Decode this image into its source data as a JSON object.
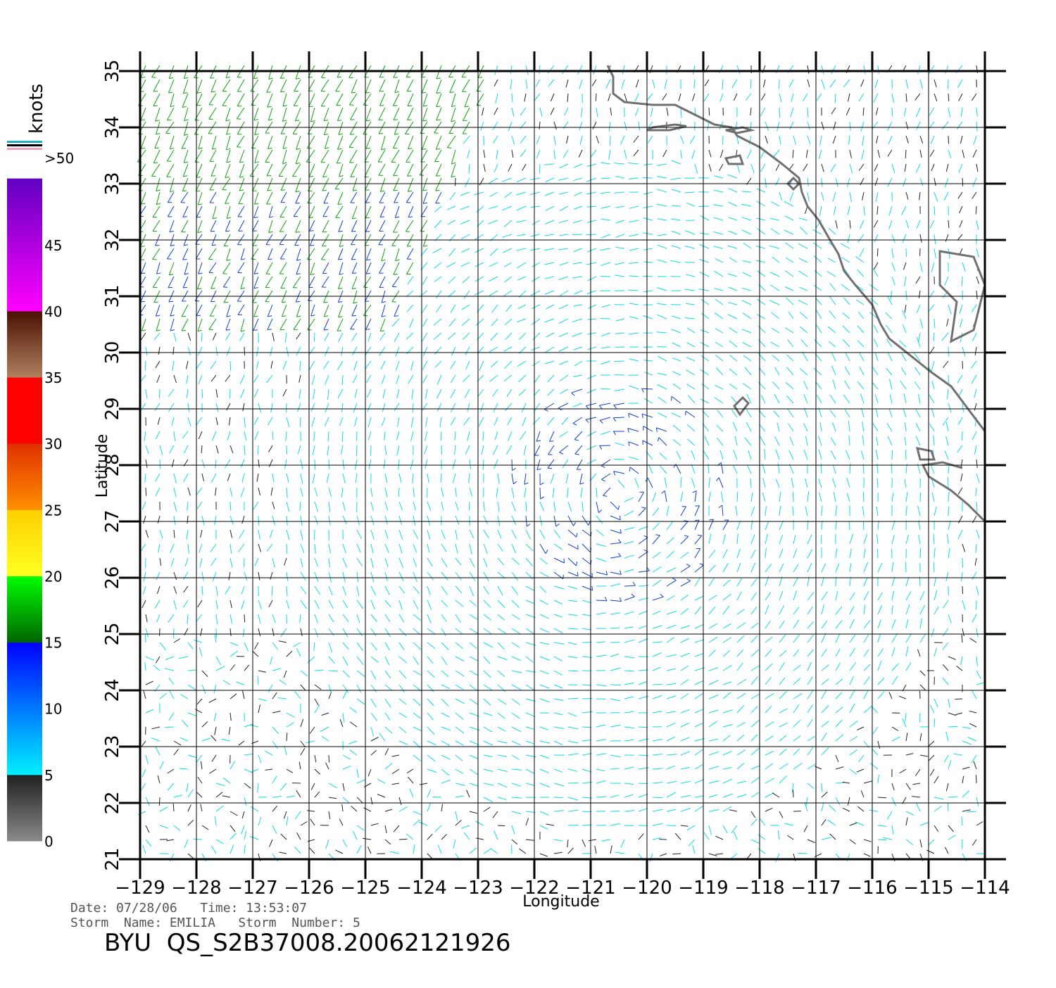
{
  "colorbar": {
    "unit_label": "knots",
    "tick_labels": [
      ">50",
      "45",
      "40",
      "35",
      "30",
      "25",
      "20",
      "15",
      "10",
      "5",
      "0"
    ],
    "bands": [
      {
        "from": 0,
        "to": 5,
        "top": "#202020",
        "bottom": "#8a8a8a"
      },
      {
        "from": 5,
        "to": 15,
        "top": "#0000ff",
        "bottom": "#00f0ff"
      },
      {
        "from": 15,
        "to": 20,
        "top": "#00ff00",
        "bottom": "#006400"
      },
      {
        "from": 20,
        "to": 25,
        "top": "#ffd000",
        "bottom": "#ffff20"
      },
      {
        "from": 25,
        "to": 30,
        "top": "#e03000",
        "bottom": "#ff9000"
      },
      {
        "from": 30,
        "to": 35,
        "top": "#ff0000",
        "bottom": "#ff0000"
      },
      {
        "from": 35,
        "to": 40,
        "top": "#4a1000",
        "bottom": "#b08060"
      },
      {
        "from": 40,
        "to": 50,
        "top": "#6000c0",
        "bottom": "#ff00ff"
      }
    ]
  },
  "map": {
    "lon_range": [
      -129,
      -114
    ],
    "lat_range": [
      21,
      35
    ],
    "lon_ticks": [
      -129,
      -128,
      -127,
      -126,
      -125,
      -124,
      -123,
      -122,
      -121,
      -120,
      -119,
      -118,
      -117,
      -116,
      -115,
      -114
    ],
    "lat_ticks": [
      21,
      22,
      23,
      24,
      25,
      26,
      27,
      28,
      29,
      30,
      31,
      32,
      33,
      34,
      35
    ],
    "x_axis_label": "Longitude",
    "y_axis_label": "Latitude",
    "grid": true,
    "storm_center": {
      "lon": -120.5,
      "lat": 27.5
    }
  },
  "footer": {
    "date_line": "Date: 07/28/06   Time: 13:53:07",
    "storm_line": "Storm  Name: EMILIA   Storm  Number: 5",
    "file_id": "BYU  QS_S2B37008.20062121926"
  },
  "colors": {
    "grid": "#000000",
    "coast": "#707070",
    "speed_0_5": "#222222",
    "speed_5_10": "#10d8e8",
    "speed_10_15": "#1040d0",
    "speed_15_20": "#10a010"
  }
}
